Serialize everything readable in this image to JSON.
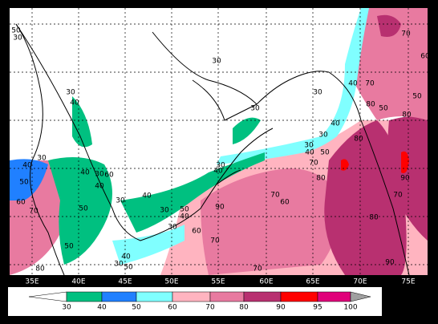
{
  "map": {
    "longitude_labels": [
      "35E",
      "40E",
      "45E",
      "50E",
      "55E",
      "60E",
      "65E",
      "70E",
      "75E"
    ],
    "contour_labels": [
      "50",
      "30",
      "30",
      "30",
      "40",
      "30",
      "30",
      "40",
      "40",
      "70",
      "50",
      "80",
      "70",
      "60",
      "50",
      "80",
      "30",
      "30",
      "40",
      "50",
      "80",
      "70",
      "80",
      "90",
      "70",
      "80",
      "90",
      "30",
      "40",
      "30",
      "40",
      "40",
      "30",
      "60",
      "40",
      "50",
      "60",
      "70",
      "50",
      "30",
      "40",
      "30",
      "50",
      "40",
      "60",
      "90",
      "70",
      "70",
      "60",
      "70",
      "50",
      "80",
      "40",
      "50",
      "30",
      "30"
    ]
  },
  "colorbar": {
    "labels": [
      "30",
      "40",
      "50",
      "60",
      "70",
      "80",
      "90",
      "95",
      "100"
    ]
  }
}
